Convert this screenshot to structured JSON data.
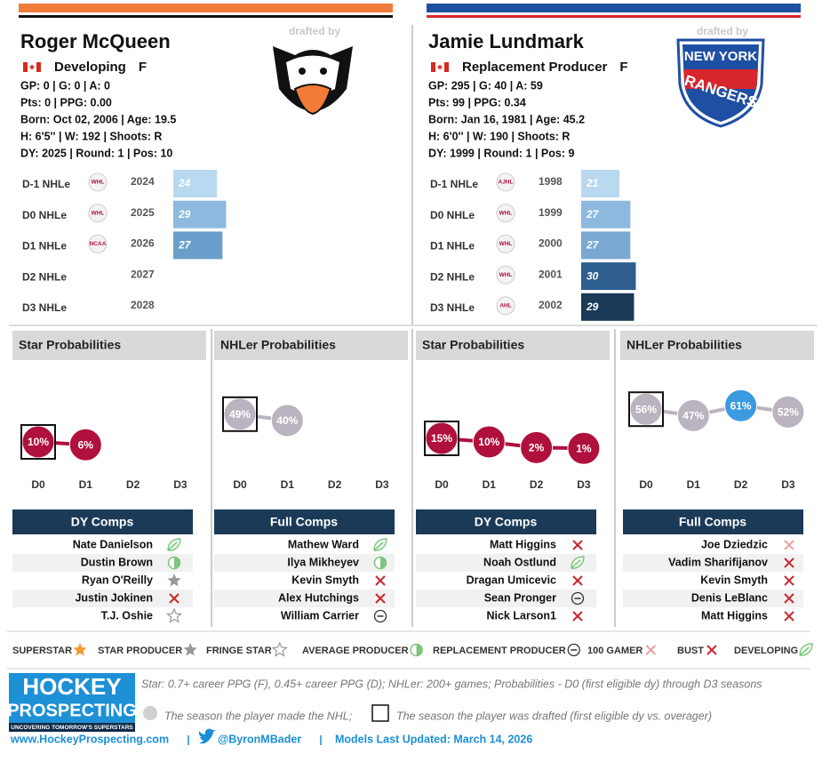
{
  "players": [
    {
      "name": "Roger McQueen",
      "status": "Developing",
      "position": "F",
      "drafted_by": "drafted by",
      "bar_colors": [
        "#ee7d3b",
        "#111111"
      ],
      "stats": [
        "GP: 0 | G: 0 | A: 0",
        "Pts: 0 | PPG: 0.00",
        "Born: Oct 02, 2006 | Age: 19.5",
        "H: 6'5'' | W: 192 | Shoots: R",
        "DY: 2025 | Round: 1 | Pos: 10"
      ],
      "nhle": {
        "labels": [
          "D-1 NHLe",
          "D0 NHLe",
          "D1 NHLe",
          "D2 NHLe",
          "D3 NHLe"
        ],
        "leagues": [
          "WHL",
          "WHL",
          "NCAA",
          null,
          null
        ],
        "years": [
          "2024",
          "2025",
          "2026",
          "2027",
          "2028"
        ],
        "values": [
          24,
          29,
          27,
          null,
          null
        ],
        "colors": [
          "#b8d9ef",
          "#8db9de",
          "#6a9fcb",
          null,
          null
        ]
      },
      "star_prob": {
        "title": "Star Probabilities",
        "categories": [
          "D0",
          "D1",
          "D2",
          "D3"
        ],
        "values": [
          10,
          6,
          null,
          null
        ],
        "value_labels": [
          "10%",
          "6%",
          null,
          null
        ],
        "color": "#b0103c",
        "drafted_index": 0
      },
      "nhler_prob": {
        "title": "NHLer Probabilities",
        "categories": [
          "D0",
          "D1",
          "D2",
          "D3"
        ],
        "values": [
          49,
          40,
          null,
          null
        ],
        "value_labels": [
          "49%",
          "40%",
          null,
          null
        ],
        "color": "#bbb3bf",
        "drafted_index": 0
      },
      "dy_comps": {
        "title": "DY Comps",
        "names": [
          "Nate Danielson",
          "Dustin Brown",
          "Ryan O'Reilly",
          "Justin Jokinen",
          "T.J. Oshie"
        ],
        "outcomes": [
          "DEVELOPING",
          "AVERAGE PRODUCER",
          "STAR PRODUCER",
          "BUST",
          "FRINGE STAR"
        ]
      },
      "full_comps": {
        "title": "Full Comps",
        "names": [
          "Mathew Ward",
          "Ilya Mikheyev",
          "Kevin Smyth",
          "Alex Hutchings",
          "William Carrier"
        ],
        "outcomes": [
          "DEVELOPING",
          "AVERAGE PRODUCER",
          "BUST",
          "BUST",
          "REPLACEMENT PRODUCER"
        ]
      }
    },
    {
      "name": "Jamie Lundmark",
      "status": "Replacement Producer",
      "position": "F",
      "drafted_by": "drafted by",
      "logo_text": [
        "NEW YORK",
        "RANGERS"
      ],
      "bar_colors": [
        "#1f4fa3",
        "#d8262e"
      ],
      "stats": [
        "GP: 295 | G: 40 | A: 59",
        "Pts: 99 | PPG: 0.34",
        "Born: Jan 16, 1981 | Age: 45.2",
        "H: 6'0'' | W: 190 | Shoots: R",
        "DY: 1999 | Round: 1 | Pos: 9"
      ],
      "nhle": {
        "labels": [
          "D-1 NHLe",
          "D0 NHLe",
          "D1 NHLe",
          "D2 NHLe",
          "D3 NHLe"
        ],
        "leagues": [
          "AJHL",
          "WHL",
          "WHL",
          "WHL",
          "AHL"
        ],
        "years": [
          "1998",
          "1999",
          "2000",
          "2001",
          "2002"
        ],
        "values": [
          21,
          27,
          27,
          30,
          29
        ],
        "colors": [
          "#b8d9ef",
          "#8db9de",
          "#7aa8d2",
          "#2f5f8f",
          "#1b3a57"
        ]
      },
      "star_prob": {
        "title": "Star Probabilities",
        "categories": [
          "D0",
          "D1",
          "D2",
          "D3"
        ],
        "values": [
          15,
          10,
          2,
          1
        ],
        "value_labels": [
          "15%",
          "10%",
          "2%",
          "1%"
        ],
        "color": "#b0103c",
        "drafted_index": 0
      },
      "nhler_prob": {
        "title": "NHLer Probabilities",
        "categories": [
          "D0",
          "D1",
          "D2",
          "D3"
        ],
        "values": [
          56,
          47,
          61,
          52
        ],
        "value_labels": [
          "56%",
          "47%",
          "61%",
          "52%"
        ],
        "color": "#bbb3bf",
        "drafted_index": 0,
        "made_nhl_index": 2,
        "made_nhl_color": "#3b9ae0"
      },
      "dy_comps": {
        "title": "DY Comps",
        "names": [
          "Matt Higgins",
          "Noah Ostlund",
          "Dragan Umicevic",
          "Sean Pronger",
          "Nick Larson1"
        ],
        "outcomes": [
          "BUST",
          "DEVELOPING",
          "BUST",
          "REPLACEMENT PRODUCER",
          "BUST"
        ]
      },
      "full_comps": {
        "title": "Full Comps",
        "names": [
          "Joe Dziedzic",
          "Vadim Sharifijanov",
          "Kevin Smyth",
          "Denis LeBlanc",
          "Matt Higgins"
        ],
        "outcomes": [
          "100 GAMER",
          "BUST",
          "BUST",
          "BUST",
          "BUST"
        ]
      }
    }
  ],
  "legend": [
    "SUPERSTAR",
    "STAR PRODUCER",
    "FRINGE STAR",
    "AVERAGE PRODUCER",
    "REPLACEMENT PRODUCER",
    "100 GAMER",
    "BUST",
    "DEVELOPING"
  ],
  "footer": {
    "brand": [
      "HOCKEY",
      "PROSPECTING",
      "UNCOVERING TOMORROW'S SUPERSTARS"
    ],
    "notes": [
      "Star: 0.7+ career PPG (F), 0.45+ career PPG (D); NHLer: 200+ games; Probabilities - D0 (first eligible dy) through D3 seasons",
      "The season the player made the NHL;",
      "The season the player was drafted (first eligible dy vs. overager)"
    ],
    "links": [
      "www.HockeyProspecting.com",
      "@ByronMBader",
      "Models Last Updated: March 14, 2026"
    ]
  }
}
